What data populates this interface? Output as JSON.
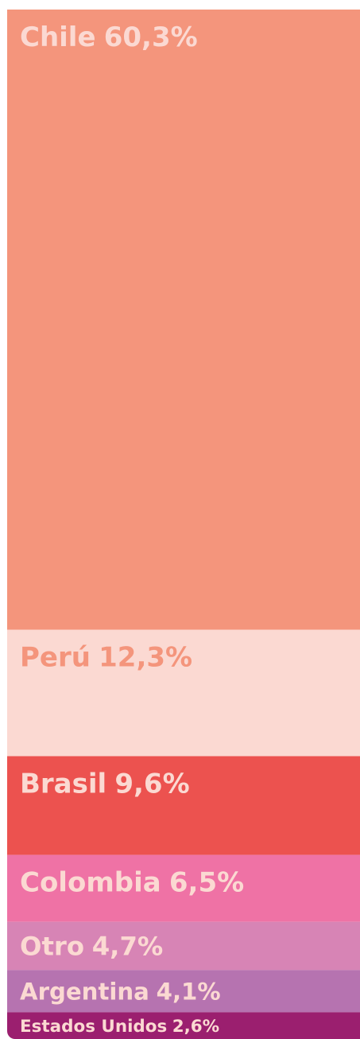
{
  "chart_data": {
    "type": "stacked-column",
    "categories": [
      "Chile",
      "Perú",
      "Brasil",
      "Colombia",
      "Otro",
      "Argentina",
      "Estados Unidos"
    ],
    "values": [
      60.3,
      12.3,
      9.6,
      6.5,
      4.7,
      4.1,
      2.6
    ],
    "value_labels": [
      "60,3%",
      "12,3%",
      "9,6%",
      "6,5%",
      "4,7%",
      "4,1%",
      "2,6%"
    ],
    "colors": [
      "#f4957c",
      "#fbd9d2",
      "#ec524f",
      "#ef72a5",
      "#d784b5",
      "#b673b0",
      "#9b1f6f"
    ],
    "label_colors": [
      "#fbd9d2",
      "#f4957c",
      "#fbd9d2",
      "#fbd9d2",
      "#fbd9d2",
      "#fbd9d2",
      "#fbd9d2"
    ]
  }
}
